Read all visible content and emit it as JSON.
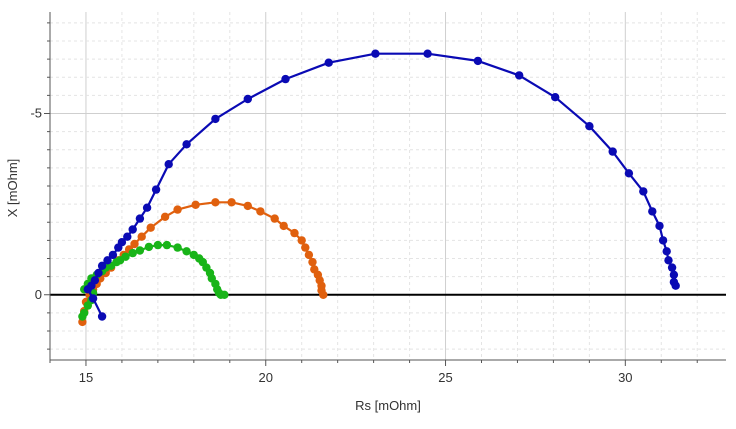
{
  "chart_data": {
    "type": "scatter",
    "title": "",
    "xlabel": "Rs [mOhm]",
    "ylabel": "X [mOhm]",
    "xlim": [
      14,
      32.8
    ],
    "ylim": [
      1.8,
      -7.8
    ],
    "y_inverted": true,
    "grid": true,
    "zero_line": 0,
    "x_ticks": [
      15,
      20,
      25,
      30
    ],
    "x_tick_labels": [
      "15",
      "20",
      "25",
      "30"
    ],
    "y_ticks": [
      -5,
      0
    ],
    "y_tick_labels": [
      "-5",
      "0"
    ],
    "series": [
      {
        "color": "#0a0ab4",
        "points": [
          [
            15.45,
            0.6
          ],
          [
            15.2,
            0.1
          ],
          [
            15.05,
            -0.15
          ],
          [
            15.15,
            -0.25
          ],
          [
            15.25,
            -0.4
          ],
          [
            15.35,
            -0.6
          ],
          [
            15.45,
            -0.8
          ],
          [
            15.6,
            -0.95
          ],
          [
            15.75,
            -1.1
          ],
          [
            15.9,
            -1.3
          ],
          [
            16.0,
            -1.45
          ],
          [
            16.15,
            -1.6
          ],
          [
            16.3,
            -1.8
          ],
          [
            16.5,
            -2.1
          ],
          [
            16.7,
            -2.4
          ],
          [
            16.95,
            -2.9
          ],
          [
            17.3,
            -3.6
          ],
          [
            17.8,
            -4.15
          ],
          [
            18.6,
            -4.85
          ],
          [
            19.5,
            -5.4
          ],
          [
            20.55,
            -5.95
          ],
          [
            21.75,
            -6.4
          ],
          [
            23.05,
            -6.65
          ],
          [
            24.5,
            -6.65
          ],
          [
            25.9,
            -6.45
          ],
          [
            27.05,
            -6.05
          ],
          [
            28.05,
            -5.45
          ],
          [
            29.0,
            -4.65
          ],
          [
            29.65,
            -3.95
          ],
          [
            30.1,
            -3.35
          ],
          [
            30.5,
            -2.85
          ],
          [
            30.75,
            -2.3
          ],
          [
            30.95,
            -1.9
          ],
          [
            31.05,
            -1.5
          ],
          [
            31.15,
            -1.2
          ],
          [
            31.2,
            -0.95
          ],
          [
            31.3,
            -0.75
          ],
          [
            31.35,
            -0.55
          ],
          [
            31.35,
            -0.35
          ],
          [
            31.4,
            -0.25
          ]
        ]
      },
      {
        "color": "#e0600e",
        "points": [
          [
            14.9,
            0.75
          ],
          [
            14.95,
            0.45
          ],
          [
            15.0,
            0.2
          ],
          [
            15.1,
            0.0
          ],
          [
            15.2,
            -0.15
          ],
          [
            15.3,
            -0.3
          ],
          [
            15.4,
            -0.45
          ],
          [
            15.55,
            -0.6
          ],
          [
            15.7,
            -0.75
          ],
          [
            15.9,
            -0.95
          ],
          [
            16.05,
            -1.1
          ],
          [
            16.2,
            -1.25
          ],
          [
            16.35,
            -1.4
          ],
          [
            16.55,
            -1.6
          ],
          [
            16.8,
            -1.85
          ],
          [
            17.2,
            -2.15
          ],
          [
            17.55,
            -2.35
          ],
          [
            18.05,
            -2.48
          ],
          [
            18.6,
            -2.55
          ],
          [
            19.05,
            -2.55
          ],
          [
            19.5,
            -2.45
          ],
          [
            19.85,
            -2.3
          ],
          [
            20.25,
            -2.1
          ],
          [
            20.5,
            -1.9
          ],
          [
            20.8,
            -1.7
          ],
          [
            21.0,
            -1.5
          ],
          [
            21.1,
            -1.3
          ],
          [
            21.2,
            -1.1
          ],
          [
            21.3,
            -0.9
          ],
          [
            21.35,
            -0.7
          ],
          [
            21.45,
            -0.55
          ],
          [
            21.5,
            -0.4
          ],
          [
            21.55,
            -0.25
          ],
          [
            21.55,
            -0.12
          ],
          [
            21.6,
            0.0
          ]
        ]
      },
      {
        "color": "#18b418",
        "points": [
          [
            14.9,
            0.6
          ],
          [
            14.95,
            0.5
          ],
          [
            15.05,
            0.3
          ],
          [
            15.15,
            0.15
          ],
          [
            15.2,
            -0.05
          ],
          [
            14.95,
            -0.15
          ],
          [
            15.05,
            -0.3
          ],
          [
            15.15,
            -0.45
          ],
          [
            15.3,
            -0.55
          ],
          [
            15.45,
            -0.65
          ],
          [
            15.55,
            -0.75
          ],
          [
            15.7,
            -0.8
          ],
          [
            15.85,
            -0.9
          ],
          [
            15.95,
            -0.95
          ],
          [
            16.1,
            -1.05
          ],
          [
            16.3,
            -1.15
          ],
          [
            16.5,
            -1.22
          ],
          [
            16.75,
            -1.32
          ],
          [
            17.0,
            -1.37
          ],
          [
            17.25,
            -1.37
          ],
          [
            17.55,
            -1.3
          ],
          [
            17.8,
            -1.2
          ],
          [
            18.0,
            -1.1
          ],
          [
            18.15,
            -1.0
          ],
          [
            18.25,
            -0.9
          ],
          [
            18.35,
            -0.75
          ],
          [
            18.45,
            -0.6
          ],
          [
            18.5,
            -0.45
          ],
          [
            18.6,
            -0.3
          ],
          [
            18.65,
            -0.15
          ],
          [
            18.7,
            -0.05
          ],
          [
            18.75,
            0.0
          ],
          [
            18.85,
            0.0
          ]
        ]
      }
    ]
  }
}
